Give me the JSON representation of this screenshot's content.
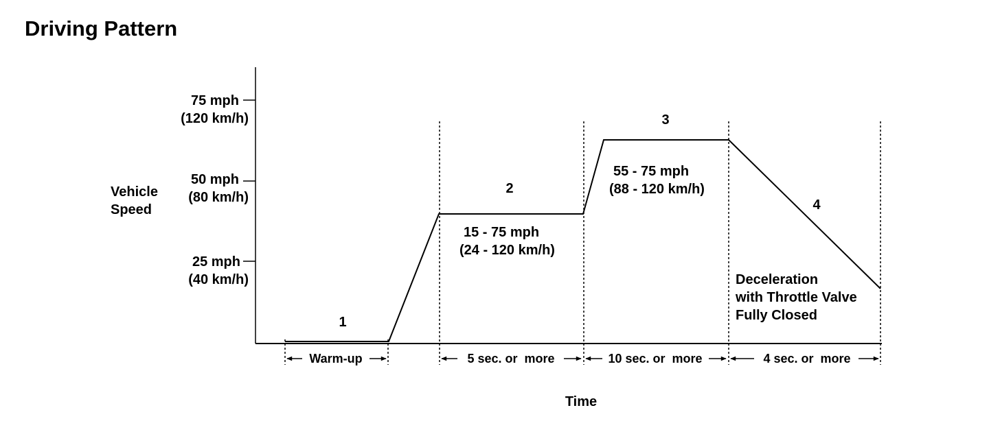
{
  "title": "Driving Pattern",
  "y_axis": {
    "label_line1": "Vehicle",
    "label_line2": "Speed",
    "ticks": [
      {
        "mph": "75 mph",
        "kmh": "(120 km/h)"
      },
      {
        "mph": "50 mph",
        "kmh": "(80 km/h)"
      },
      {
        "mph": "25 mph",
        "kmh": "(40 km/h)"
      }
    ]
  },
  "x_axis": {
    "label": "Time"
  },
  "phases": [
    {
      "number": "1",
      "duration": "Warm-up"
    },
    {
      "number": "2",
      "speed_mph": "15 - 75 mph",
      "speed_kmh": "(24 - 120 km/h)",
      "duration": "5 sec. or  more"
    },
    {
      "number": "3",
      "speed_mph": "55 - 75 mph",
      "speed_kmh": "(88 - 120 km/h)",
      "duration": "10 sec. or  more"
    },
    {
      "number": "4",
      "note_line1": "Deceleration",
      "note_line2": "with Throttle Valve",
      "note_line3": "Fully Closed",
      "duration": "4 sec. or  more"
    }
  ]
}
